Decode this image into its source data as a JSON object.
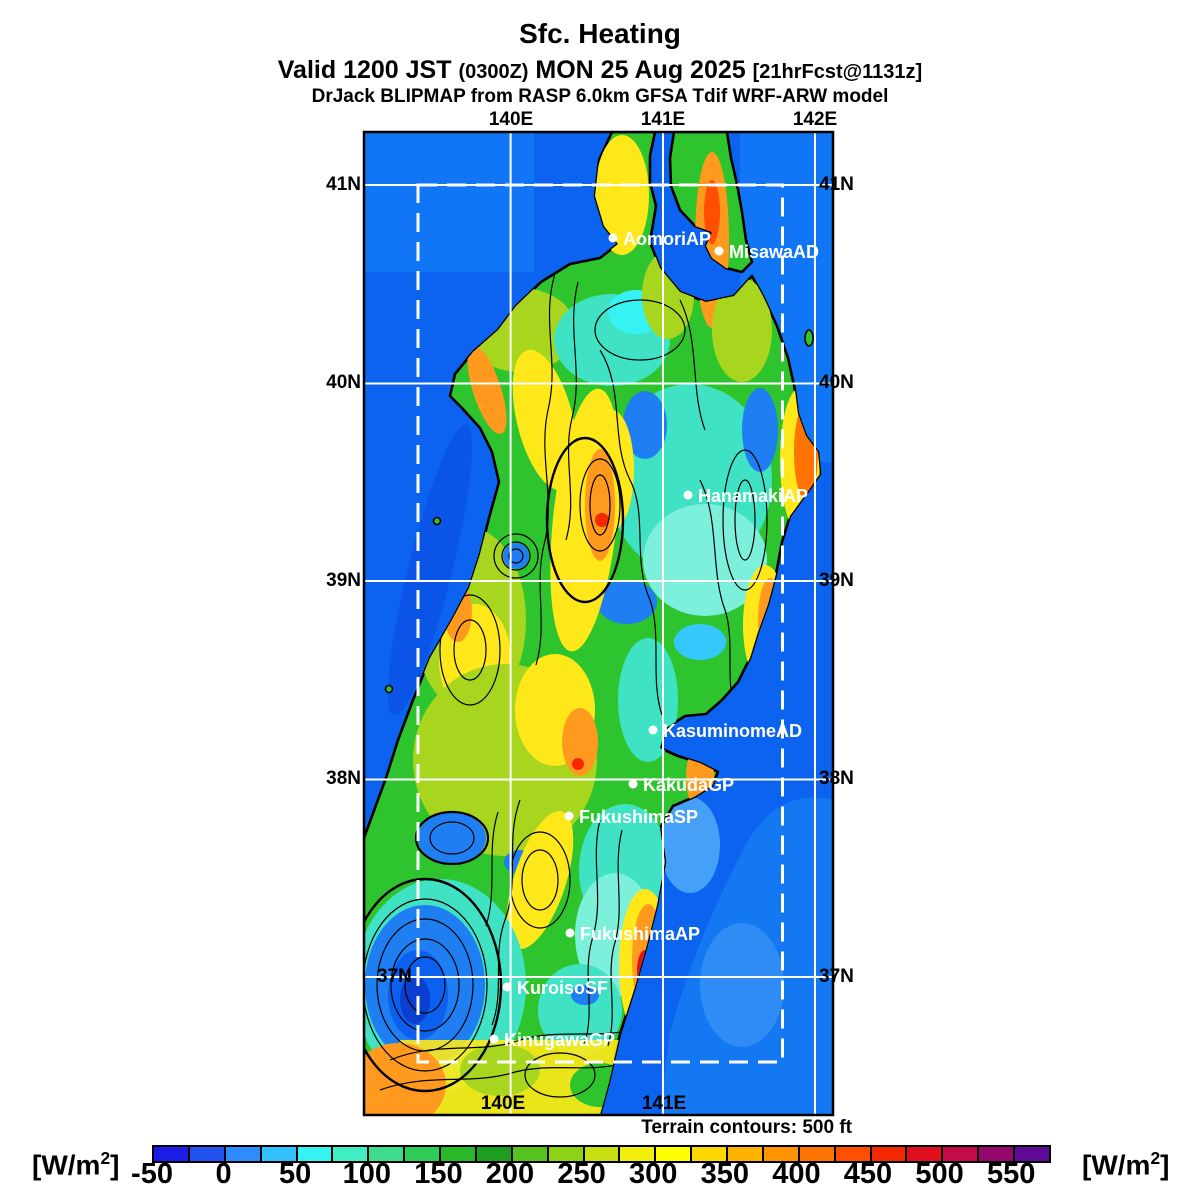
{
  "title": {
    "line1": "Sfc. Heating",
    "line2_a": "Valid 1200 JST ",
    "line2_b": "(0300Z)",
    "line2_c": " MON 25 Aug 2025 ",
    "line2_d": "[21hrFcst@1131z]",
    "line3": "DrJack BLIPMAP from RASP 6.0km GFSA Tdif WRF-ARW model"
  },
  "map": {
    "top_lon_labels": [
      {
        "text": "140E"
      },
      {
        "text": "141E"
      },
      {
        "text": "142E"
      }
    ],
    "bottom_lon_labels": [
      {
        "text": "140E"
      },
      {
        "text": "141E"
      }
    ],
    "left_lat_labels": [
      {
        "text": "41N"
      },
      {
        "text": "40N"
      },
      {
        "text": "39N"
      },
      {
        "text": "38N"
      }
    ],
    "inner_lat_label": "37N",
    "right_lat_labels": [
      {
        "text": "41N"
      },
      {
        "text": "40N"
      },
      {
        "text": "39N"
      },
      {
        "text": "38N"
      },
      {
        "text": "37N"
      }
    ],
    "stations": [
      {
        "name": "AomoriAP"
      },
      {
        "name": "MisawaAD"
      },
      {
        "name": "HanamakiAP"
      },
      {
        "name": "KasuminomeAD"
      },
      {
        "name": "KakudaGP"
      },
      {
        "name": "FukushimaSP"
      },
      {
        "name": "FukushimaAP"
      },
      {
        "name": "KuroisoSF"
      },
      {
        "name": "KinugawaGP"
      }
    ],
    "terrain_note": "Terrain contours: 500 ft"
  },
  "colorbar": {
    "unit_open": "[W/m",
    "unit_sup": "2",
    "unit_close": "]",
    "tick_labels": [
      "-50",
      "0",
      "50",
      "100",
      "150",
      "200",
      "250",
      "300",
      "350",
      "400",
      "450",
      "500",
      "550"
    ],
    "segment_colors": [
      "#1c1ce8",
      "#2253f0",
      "#2e8cff",
      "#33c0ff",
      "#36f2f2",
      "#40eec4",
      "#3cdc8c",
      "#2ecc55",
      "#28b828",
      "#1e9e1e",
      "#55c21e",
      "#8ed216",
      "#c8e012",
      "#f0ee0a",
      "#ffff00",
      "#ffd800",
      "#ffb300",
      "#ff9400",
      "#ff7300",
      "#ff4f00",
      "#f52800",
      "#e00f1e",
      "#c40a4a",
      "#94086e",
      "#5e0a96"
    ]
  },
  "colors": {
    "ocean": "#0c63ef",
    "ocean_light": "#1478f2",
    "land_base": "#2ec42e",
    "grid": "#ffffff",
    "coastline": "#000000"
  },
  "chart_data": {
    "type": "heatmap",
    "title": "Sfc. Heating",
    "valid": "1200 JST (0300Z) MON 25 Aug 2025",
    "forecast_tag": "21hrFcst@1131z",
    "model": "DrJack BLIPMAP from RASP 6.0km GFSA Tdif WRF-ARW model",
    "units": "W/m2",
    "scale_min": -50,
    "scale_max": 575,
    "scale_step": 25,
    "lon_gridlines": [
      "140E",
      "141E",
      "142E"
    ],
    "lat_gridlines": [
      "41N",
      "40N",
      "39N",
      "38N",
      "37N"
    ],
    "terrain_contour_interval_ft": 500,
    "stations": [
      "AomoriAP",
      "MisawaAD",
      "HanamakiAP",
      "KasuminomeAD",
      "KakudaGP",
      "FukushimaSP",
      "FukushimaAP",
      "KuroisoSF",
      "KinugawaGP"
    ]
  }
}
